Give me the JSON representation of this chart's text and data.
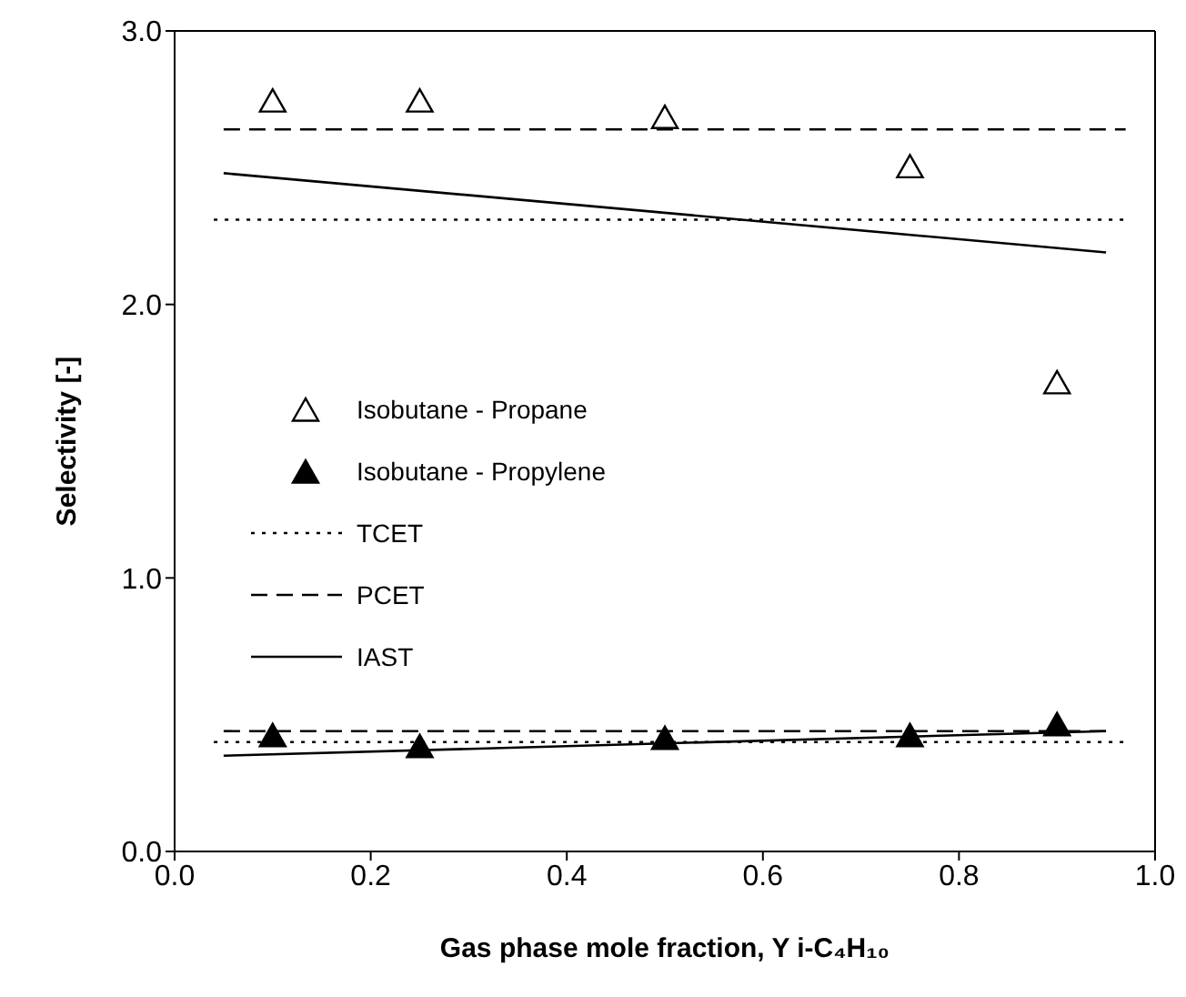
{
  "chart_data": {
    "type": "scatter",
    "xlabel": "Gas phase mole fraction, Y i-C₄H₁₀",
    "ylabel": "Selectivity  [-]",
    "xlim": [
      0,
      1
    ],
    "xticks": [
      {
        "value": 0,
        "label": "0.0"
      },
      {
        "value": 0.2,
        "label": "0.2"
      },
      {
        "value": 0.4,
        "label": "0.4"
      },
      {
        "value": 0.6,
        "label": "0.6"
      },
      {
        "value": 0.8,
        "label": "0.8"
      },
      {
        "value": 1,
        "label": "1.0"
      }
    ],
    "ylim": [
      0,
      3
    ],
    "yticks": [
      {
        "value": 0,
        "label": "0.0"
      },
      {
        "value": 1,
        "label": "1.0"
      },
      {
        "value": 2,
        "label": "2.0"
      },
      {
        "value": 3,
        "label": "3.0"
      }
    ],
    "grid": false,
    "legend": "left",
    "marker": "triangle",
    "series": [
      {
        "name": "Isobutane - Propane",
        "color": "#ffffff",
        "x": [
          0.1,
          0.25,
          0.5,
          0.75,
          0.9
        ],
        "values": [
          2.74,
          2.74,
          2.68,
          2.5,
          1.71
        ]
      },
      {
        "name": "Isobutane - Propylene",
        "color": "#000000",
        "x": [
          0.1,
          0.25,
          0.5,
          0.75,
          0.9
        ],
        "values": [
          0.42,
          0.38,
          0.41,
          0.42,
          0.46
        ]
      },
      {
        "type": "line",
        "name": "TCET",
        "color": "#000000",
        "line_style": "dotted",
        "marker": "none",
        "x": [
          0.04,
          0.97
        ],
        "values": [
          2.31,
          2.31
        ]
      },
      {
        "type": "line",
        "name": "PCET",
        "color": "#000000",
        "line_style": "dashed",
        "marker": "none",
        "x": [
          0.05,
          0.97
        ],
        "values": [
          2.64,
          2.64
        ]
      },
      {
        "type": "line",
        "name": "IAST",
        "color": "#000000",
        "line_style": "solid",
        "marker": "none",
        "x": [
          0.05,
          0.95
        ],
        "values": [
          2.48,
          2.19
        ]
      },
      {
        "type": "line",
        "color": "#000000",
        "line_style": "dotted",
        "marker": "none",
        "x": [
          0.04,
          0.97
        ],
        "values": [
          0.4,
          0.4
        ]
      },
      {
        "type": "line",
        "color": "#000000",
        "line_style": "dashed",
        "marker": "none",
        "x": [
          0.05,
          0.95
        ],
        "values": [
          0.44,
          0.44
        ]
      },
      {
        "type": "line",
        "color": "#000000",
        "line_style": "solid",
        "marker": "none",
        "x": [
          0.05,
          0.95
        ],
        "values": [
          0.35,
          0.44
        ]
      }
    ]
  }
}
